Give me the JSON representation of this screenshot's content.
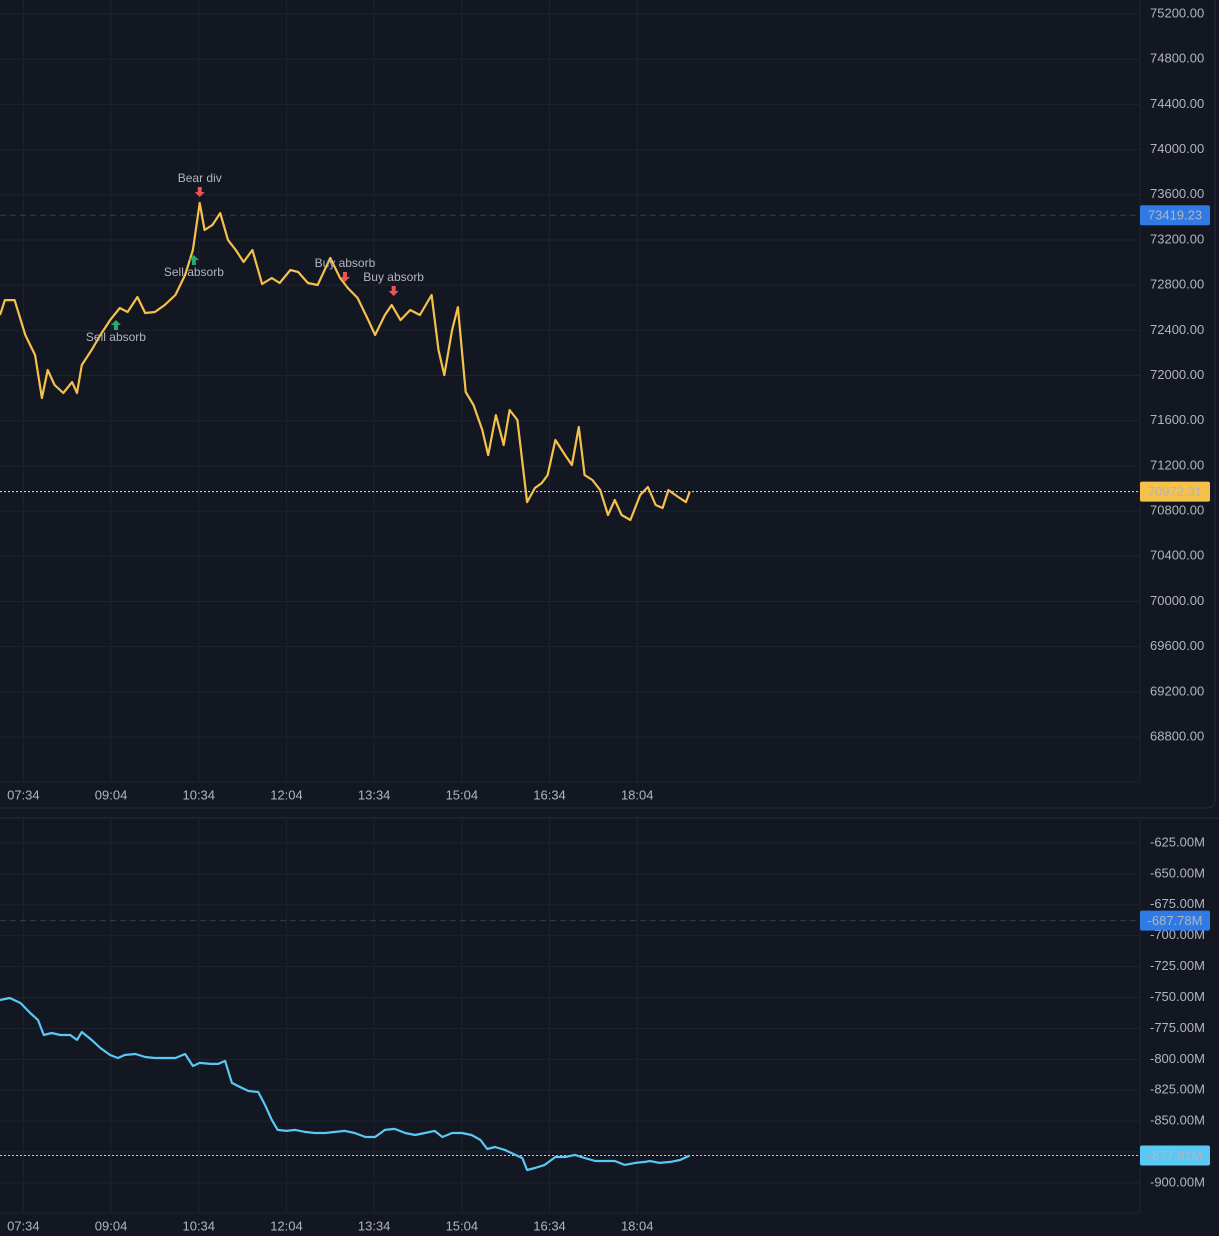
{
  "chart_data": [
    {
      "type": "line",
      "color": "#f5c14b",
      "x": [
        430,
        435,
        445,
        456,
        466,
        473,
        479,
        486,
        495,
        504,
        509,
        514,
        524,
        533,
        543,
        553,
        561,
        571,
        579,
        589,
        599,
        610,
        620,
        628,
        635,
        640,
        648,
        656,
        664,
        672,
        680,
        689,
        699,
        709,
        717,
        728,
        736,
        746,
        756,
        769,
        779,
        787,
        797,
        808,
        815,
        825,
        832,
        841,
        851,
        861,
        873,
        880,
        886,
        894,
        900,
        908,
        916,
        925,
        931,
        939,
        947,
        953,
        961,
        971,
        979,
        986,
        992,
        1000,
        1010,
        1017,
        1024,
        1030,
        1038,
        1046,
        1054,
        1061,
        1068,
        1077,
        1087,
        1095,
        1103,
        1110,
        1116,
        1126,
        1134,
        1138
      ],
      "values": [
        72536,
        72668,
        72668,
        72359,
        72181,
        71801,
        72049,
        71916,
        71845,
        71942,
        71845,
        72093,
        72226,
        72359,
        72491,
        72598,
        72562,
        72695,
        72553,
        72562,
        72624,
        72713,
        72890,
        73111,
        73527,
        73288,
        73332,
        73438,
        73199,
        73111,
        73005,
        73111,
        72810,
        72863,
        72819,
        72934,
        72916,
        72819,
        72801,
        73040,
        72863,
        72775,
        72686,
        72491,
        72359,
        72536,
        72624,
        72491,
        72580,
        72536,
        72713,
        72226,
        72004,
        72403,
        72606,
        71854,
        71739,
        71518,
        71296,
        71650,
        71385,
        71695,
        71606,
        70880,
        71004,
        71048,
        71119,
        71429,
        71296,
        71208,
        71544,
        71119,
        71075,
        70986,
        70765,
        70898,
        70765,
        70721,
        70942,
        71013,
        70854,
        70827,
        70986,
        70925,
        70880,
        70972.31
      ],
      "xlim": [
        430,
        1600
      ],
      "xticks": [
        {
          "value": 454,
          "label": "07:34"
        },
        {
          "value": 544,
          "label": "09:04"
        },
        {
          "value": 634,
          "label": "10:34"
        },
        {
          "value": 724,
          "label": "12:04"
        },
        {
          "value": 814,
          "label": "13:34"
        },
        {
          "value": 904,
          "label": "15:04"
        },
        {
          "value": 994,
          "label": "16:34"
        },
        {
          "value": 1084,
          "label": "18:04"
        }
      ],
      "ylim": [
        68402,
        75324
      ],
      "yticks": [
        {
          "value": 68800,
          "label": "68800.00"
        },
        {
          "value": 69200,
          "label": "69200.00"
        },
        {
          "value": 69600,
          "label": "69600.00"
        },
        {
          "value": 70000,
          "label": "70000.00"
        },
        {
          "value": 70400,
          "label": "70400.00"
        },
        {
          "value": 70800,
          "label": "70800.00"
        },
        {
          "value": 71200,
          "label": "71200.00"
        },
        {
          "value": 71600,
          "label": "71600.00"
        },
        {
          "value": 72000,
          "label": "72000.00"
        },
        {
          "value": 72400,
          "label": "72400.00"
        },
        {
          "value": 72800,
          "label": "72800.00"
        },
        {
          "value": 73200,
          "label": "73200.00"
        },
        {
          "value": 73600,
          "label": "73600.00"
        },
        {
          "value": 74000,
          "label": "74000.00"
        },
        {
          "value": 74400,
          "label": "74400.00"
        },
        {
          "value": 74800,
          "label": "74800.00"
        },
        {
          "value": 75200,
          "label": "75200.00"
        }
      ],
      "grid": true,
      "price_labels": [
        {
          "value": 73419.23,
          "label": "73419.23",
          "color": "#2f7ae5",
          "text_color": "#ffffff",
          "line": "dashed",
          "line_color": "#363c4e"
        },
        {
          "value": 70972.31,
          "label": "70972.31",
          "color": "#f5c14b",
          "text_color": "#131722",
          "line": "dotted",
          "line_color": "#f5e6b8"
        }
      ],
      "annotations": [
        {
          "text": "Bear div",
          "x": 635,
          "y": 73580,
          "color": "#f05350",
          "direction": "down"
        },
        {
          "text": "Sell absorb",
          "x": 549,
          "y": 72491,
          "color": "#22ab6e",
          "direction": "up"
        },
        {
          "text": "Sell absorb",
          "x": 629,
          "y": 73067,
          "color": "#22ab6e",
          "direction": "up"
        },
        {
          "text": "Buy absorb",
          "x": 784,
          "y": 72828,
          "color": "#f05350",
          "direction": "down"
        },
        {
          "text": "Buy absorb",
          "x": 834,
          "y": 72704,
          "color": "#f05350",
          "direction": "down"
        }
      ]
    },
    {
      "type": "line",
      "color": "#5ac8f5",
      "x": [
        430,
        440,
        451,
        461,
        469,
        475,
        483,
        492,
        502,
        509,
        514,
        524,
        533,
        543,
        551,
        558,
        569,
        579,
        589,
        599,
        610,
        620,
        628,
        635,
        646,
        654,
        661,
        668,
        676,
        685,
        695,
        702,
        709,
        715,
        724,
        733,
        743,
        753,
        764,
        774,
        784,
        794,
        805,
        815,
        825,
        835,
        846,
        856,
        866,
        876,
        884,
        894,
        904,
        914,
        923,
        930,
        938,
        948,
        959,
        966,
        971,
        979,
        989,
        1000,
        1010,
        1020,
        1030,
        1041,
        1051,
        1061,
        1071,
        1082,
        1092,
        1097,
        1107,
        1118,
        1128,
        1138
      ],
      "values": [
        -752.0,
        -750.4,
        -754.4,
        -762.5,
        -768.2,
        -780.3,
        -778.7,
        -780.3,
        -780.3,
        -784.3,
        -777.9,
        -784.3,
        -790.8,
        -796.5,
        -798.9,
        -796.5,
        -795.7,
        -798.1,
        -798.9,
        -798.9,
        -798.9,
        -795.7,
        -805.4,
        -802.9,
        -803.7,
        -803.7,
        -801.3,
        -819.1,
        -822.3,
        -825.6,
        -826.4,
        -836.9,
        -849.0,
        -857.1,
        -857.9,
        -857.1,
        -858.7,
        -859.6,
        -859.6,
        -858.7,
        -857.9,
        -859.6,
        -862.8,
        -862.8,
        -857.1,
        -856.3,
        -859.6,
        -861.2,
        -859.6,
        -857.9,
        -862.8,
        -859.6,
        -859.6,
        -861.2,
        -865.2,
        -872.5,
        -870.9,
        -873.3,
        -877.3,
        -879.8,
        -889.5,
        -887.9,
        -885.4,
        -879.0,
        -879.0,
        -877.3,
        -879.8,
        -882.2,
        -882.2,
        -882.2,
        -885.4,
        -883.8,
        -883.0,
        -882.2,
        -883.8,
        -883.0,
        -881.4,
        -877.81
      ],
      "xlim": [
        430,
        1600
      ],
      "xticks": [
        {
          "value": 454,
          "label": "07:34"
        },
        {
          "value": 544,
          "label": "09:04"
        },
        {
          "value": 634,
          "label": "10:34"
        },
        {
          "value": 724,
          "label": "12:04"
        },
        {
          "value": 814,
          "label": "13:34"
        },
        {
          "value": 904,
          "label": "15:04"
        },
        {
          "value": 994,
          "label": "16:34"
        },
        {
          "value": 1084,
          "label": "18:04"
        }
      ],
      "ylim": [
        -924.3,
        -604.8
      ],
      "yticks": [
        {
          "value": -900,
          "label": "-900.00M"
        },
        {
          "value": -875,
          "label": "-875.00M"
        },
        {
          "value": -850,
          "label": "-850.00M"
        },
        {
          "value": -825,
          "label": "-825.00M"
        },
        {
          "value": -800,
          "label": "-800.00M"
        },
        {
          "value": -775,
          "label": "-775.00M"
        },
        {
          "value": -750,
          "label": "-750.00M"
        },
        {
          "value": -725,
          "label": "-725.00M"
        },
        {
          "value": -700,
          "label": "-700.00M"
        },
        {
          "value": -675,
          "label": "-675.00M"
        },
        {
          "value": -650,
          "label": "-650.00M"
        },
        {
          "value": -625,
          "label": "-625.00M"
        }
      ],
      "grid": true,
      "price_labels": [
        {
          "value": -687.78,
          "label": "-687.78M",
          "color": "#2f7ae5",
          "text_color": "#ffffff",
          "line": "dashed",
          "line_color": "#363c4e"
        },
        {
          "value": -877.81,
          "label": "-877.81M",
          "color": "#5ac8f5",
          "text_color": "#131722",
          "line": "dotted",
          "line_color": "#a8dff5"
        }
      ]
    }
  ]
}
